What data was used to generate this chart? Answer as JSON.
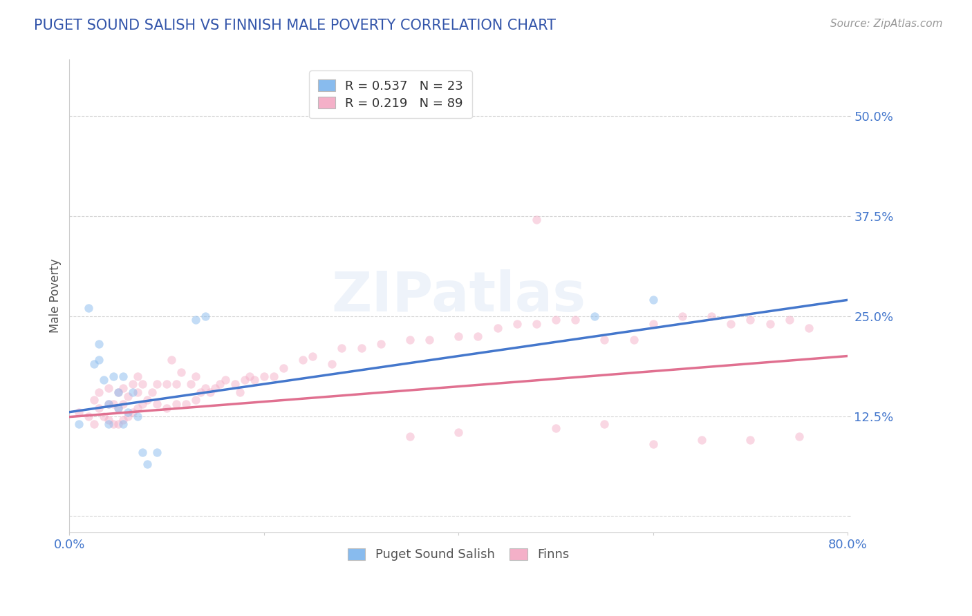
{
  "title": "PUGET SOUND SALISH VS FINNISH MALE POVERTY CORRELATION CHART",
  "source": "Source: ZipAtlas.com",
  "ylabel": "Male Poverty",
  "yticks": [
    0.0,
    0.125,
    0.25,
    0.375,
    0.5
  ],
  "ytick_labels": [
    "",
    "12.5%",
    "25.0%",
    "37.5%",
    "50.0%"
  ],
  "xlim": [
    0.0,
    0.8
  ],
  "ylim": [
    -0.02,
    0.57
  ],
  "title_color": "#3355aa",
  "title_fontsize": 15,
  "source_color": "#999999",
  "source_fontsize": 11,
  "watermark_text": "ZIPatlas",
  "blue_color": "#88bbee",
  "pink_color": "#f4b0c8",
  "blue_line_color": "#4477cc",
  "pink_line_color": "#e07090",
  "tick_color": "#4477cc",
  "legend_text_blue": "R = 0.537   N = 23",
  "legend_text_pink": "R = 0.219   N = 89",
  "blue_line_x": [
    0.0,
    0.8
  ],
  "blue_line_y": [
    0.13,
    0.27
  ],
  "pink_line_x": [
    0.0,
    0.8
  ],
  "pink_line_y": [
    0.124,
    0.2
  ],
  "blue_scatter_x": [
    0.01,
    0.02,
    0.025,
    0.03,
    0.03,
    0.035,
    0.04,
    0.04,
    0.045,
    0.05,
    0.05,
    0.055,
    0.055,
    0.06,
    0.065,
    0.07,
    0.075,
    0.08,
    0.09,
    0.13,
    0.14,
    0.54,
    0.6
  ],
  "blue_scatter_y": [
    0.115,
    0.26,
    0.19,
    0.195,
    0.215,
    0.17,
    0.115,
    0.14,
    0.175,
    0.135,
    0.155,
    0.115,
    0.175,
    0.13,
    0.155,
    0.125,
    0.08,
    0.065,
    0.08,
    0.245,
    0.25,
    0.25,
    0.27
  ],
  "pink_scatter_x": [
    0.01,
    0.02,
    0.025,
    0.025,
    0.03,
    0.03,
    0.035,
    0.04,
    0.04,
    0.04,
    0.045,
    0.045,
    0.05,
    0.05,
    0.05,
    0.055,
    0.055,
    0.055,
    0.06,
    0.06,
    0.065,
    0.065,
    0.07,
    0.07,
    0.07,
    0.075,
    0.075,
    0.08,
    0.085,
    0.09,
    0.09,
    0.1,
    0.1,
    0.105,
    0.11,
    0.11,
    0.115,
    0.12,
    0.125,
    0.13,
    0.13,
    0.135,
    0.14,
    0.145,
    0.15,
    0.155,
    0.16,
    0.17,
    0.175,
    0.18,
    0.185,
    0.19,
    0.2,
    0.21,
    0.22,
    0.24,
    0.25,
    0.27,
    0.28,
    0.3,
    0.32,
    0.35,
    0.37,
    0.4,
    0.42,
    0.44,
    0.46,
    0.48,
    0.5,
    0.52,
    0.55,
    0.58,
    0.6,
    0.63,
    0.66,
    0.68,
    0.7,
    0.72,
    0.74,
    0.76,
    0.35,
    0.4,
    0.5,
    0.55,
    0.6,
    0.65,
    0.7,
    0.75,
    0.48
  ],
  "pink_scatter_y": [
    0.13,
    0.125,
    0.115,
    0.145,
    0.135,
    0.155,
    0.125,
    0.12,
    0.14,
    0.16,
    0.115,
    0.14,
    0.115,
    0.135,
    0.155,
    0.12,
    0.14,
    0.16,
    0.125,
    0.15,
    0.13,
    0.165,
    0.135,
    0.155,
    0.175,
    0.14,
    0.165,
    0.145,
    0.155,
    0.14,
    0.165,
    0.135,
    0.165,
    0.195,
    0.14,
    0.165,
    0.18,
    0.14,
    0.165,
    0.145,
    0.175,
    0.155,
    0.16,
    0.155,
    0.16,
    0.165,
    0.17,
    0.165,
    0.155,
    0.17,
    0.175,
    0.17,
    0.175,
    0.175,
    0.185,
    0.195,
    0.2,
    0.19,
    0.21,
    0.21,
    0.215,
    0.22,
    0.22,
    0.225,
    0.225,
    0.235,
    0.24,
    0.24,
    0.245,
    0.245,
    0.22,
    0.22,
    0.24,
    0.25,
    0.25,
    0.24,
    0.245,
    0.24,
    0.245,
    0.235,
    0.1,
    0.105,
    0.11,
    0.115,
    0.09,
    0.095,
    0.095,
    0.1,
    0.37
  ],
  "scatter_size": 80,
  "scatter_alpha": 0.5,
  "background_color": "#ffffff",
  "grid_color": "#cccccc",
  "grid_style": "--",
  "grid_alpha": 0.8
}
